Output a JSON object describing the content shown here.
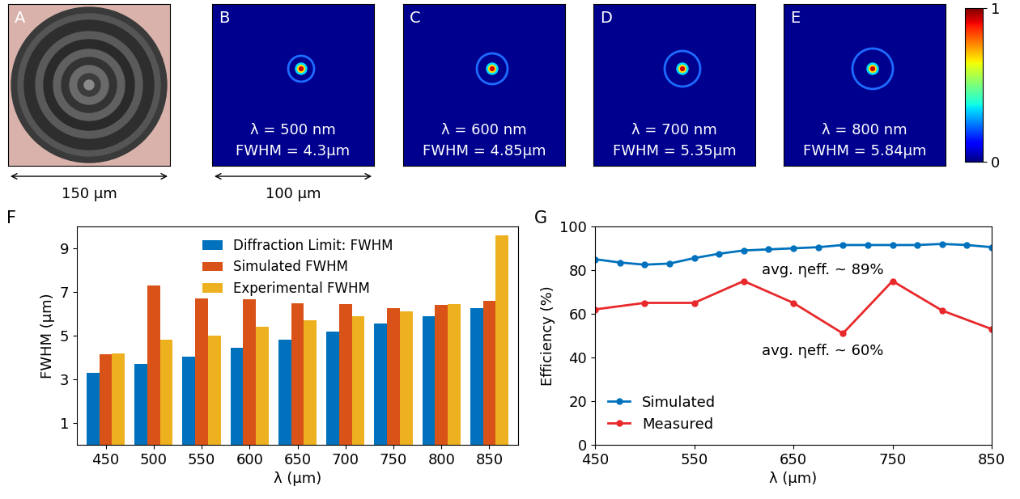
{
  "image_panels": [
    {
      "label": "A",
      "scale_bar": "150 μm"
    },
    {
      "label": "B",
      "wavelength": "λ = 500 nm",
      "fwhm": "FWHM = 4.3μm",
      "scale_bar": "100 μm"
    },
    {
      "label": "C",
      "wavelength": "λ = 600 nm",
      "fwhm": "FWHM = 4.85μm"
    },
    {
      "label": "D",
      "wavelength": "λ = 700 nm",
      "fwhm": "FWHM = 5.35μm"
    },
    {
      "label": "E",
      "wavelength": "λ = 800 nm",
      "fwhm": "FWHM = 5.84μm"
    }
  ],
  "colorbar": {
    "range": [
      0,
      1
    ],
    "ticks": [
      0,
      1
    ]
  },
  "chart_panel_labels": [
    "F",
    "G"
  ],
  "chart_data": [
    {
      "type": "bar",
      "x_label": "λ (μm)",
      "y_label": "FWHM (μm)",
      "categories": [
        "450",
        "500",
        "550",
        "600",
        "650",
        "700",
        "750",
        "800",
        "850"
      ],
      "series": [
        {
          "name": "Diffraction Limit: FWHM",
          "color": "#0072bd",
          "values": [
            3.3,
            3.7,
            4.05,
            4.45,
            4.8,
            5.2,
            5.55,
            5.9,
            6.25
          ]
        },
        {
          "name": "Simulated FWHM",
          "color": "#d95319",
          "values": [
            4.15,
            7.3,
            6.7,
            6.65,
            6.5,
            6.45,
            6.25,
            6.4,
            6.6
          ]
        },
        {
          "name": "Experimental FWHM",
          "color": "#edb120",
          "values": [
            4.2,
            4.8,
            5.0,
            5.4,
            5.7,
            5.9,
            6.1,
            6.45,
            9.6
          ]
        }
      ],
      "ylim": [
        0,
        10
      ],
      "yticks": [
        1,
        3,
        5,
        7,
        9
      ],
      "legend": "upper center"
    },
    {
      "type": "line",
      "x_label": "λ (μm)",
      "y_label": "Efficiency (%)",
      "series": [
        {
          "name": "Simulated",
          "color": "#0072bd",
          "marker": "circle",
          "x": [
            450,
            475,
            500,
            525,
            550,
            575,
            600,
            625,
            650,
            675,
            700,
            725,
            750,
            775,
            800,
            825,
            850
          ],
          "values": [
            85,
            83.5,
            82.5,
            83,
            85.5,
            87.5,
            89,
            89.5,
            90,
            90.5,
            91.5,
            91.5,
            91.5,
            91.5,
            92,
            91.5,
            90.5
          ]
        },
        {
          "name": "Measured",
          "color": "#e8282b",
          "marker": "circle",
          "x": [
            450,
            500,
            550,
            600,
            650,
            700,
            750,
            800,
            850
          ],
          "values": [
            62,
            65,
            65,
            75,
            65,
            51,
            75,
            61.5,
            53
          ]
        }
      ],
      "annotations": [
        "avg. ηeff. ~ 89%",
        "avg. ηeff. ~ 60%"
      ],
      "xlim": [
        450,
        850
      ],
      "xticks": [
        450,
        550,
        650,
        750,
        850
      ],
      "ylim": [
        0,
        100
      ],
      "yticks": [
        0,
        20,
        40,
        60,
        80,
        100
      ],
      "legend": "lower left"
    }
  ]
}
